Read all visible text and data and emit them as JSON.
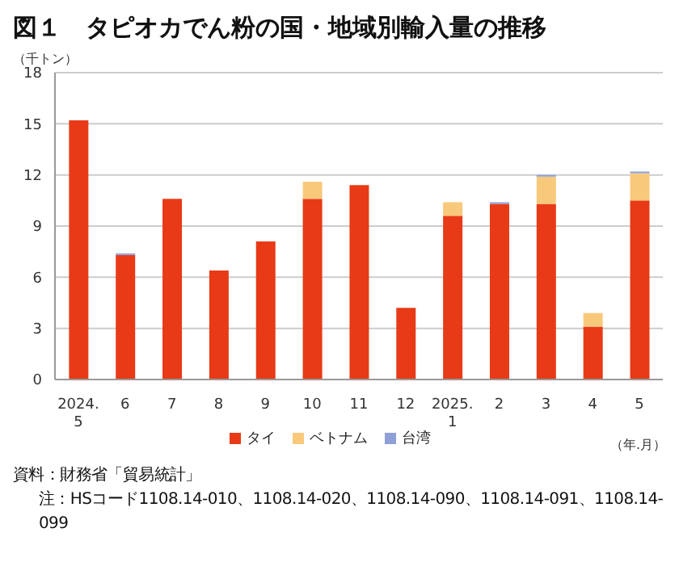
{
  "chart_data": {
    "type": "bar",
    "title": "図１　タピオカでん粉の国・地域別輸入量の推移",
    "ylabel": "（千トン）",
    "xlabel": "（年.月）",
    "categories": [
      "2024.\n5",
      "6",
      "7",
      "8",
      "9",
      "10",
      "11",
      "12",
      "2025.\n1",
      "2",
      "3",
      "4",
      "5"
    ],
    "series": [
      {
        "name": "タイ",
        "color": "#e83a17",
        "values": [
          15.2,
          7.3,
          10.6,
          6.4,
          8.1,
          10.6,
          11.4,
          4.2,
          9.6,
          10.3,
          10.3,
          3.1,
          10.5
        ]
      },
      {
        "name": "ベトナム",
        "color": "#f8c97a",
        "values": [
          0,
          0,
          0,
          0,
          0,
          1.0,
          0,
          0,
          0.8,
          0,
          1.6,
          0.8,
          1.6
        ]
      },
      {
        "name": "台湾",
        "color": "#8f9fd8",
        "values": [
          0,
          0.1,
          0,
          0,
          0,
          0,
          0,
          0,
          0,
          0.1,
          0.1,
          0,
          0.1
        ]
      }
    ],
    "stacked": true,
    "ylim": [
      0,
      18
    ],
    "yticks": [
      0,
      3,
      6,
      9,
      12,
      15,
      18
    ],
    "grid": "y",
    "legend": "bottom",
    "annotations": [
      "資料：財務省「貿易統計」",
      "注：HSコード1108.14-010、1108.14-020、1108.14-090、1108.14-091、1108.14-099"
    ]
  }
}
